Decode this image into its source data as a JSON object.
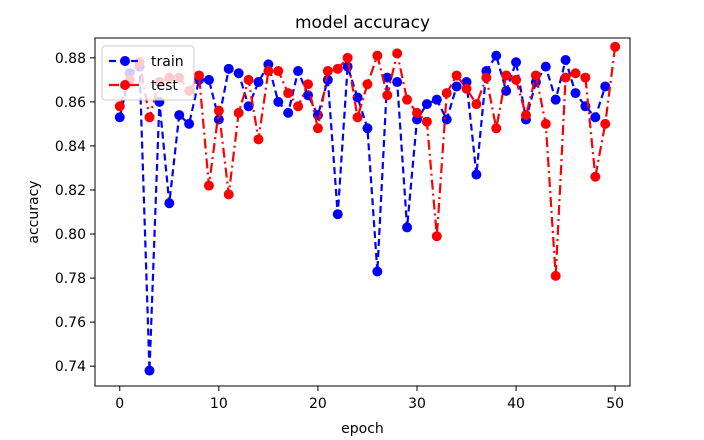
{
  "chart_data": {
    "type": "line",
    "title": "model accuracy",
    "xlabel": "epoch",
    "ylabel": "accuracy",
    "xlim": [
      -2.5,
      51.5
    ],
    "ylim": [
      0.731,
      0.889
    ],
    "xticks": [
      0,
      10,
      20,
      30,
      40,
      50
    ],
    "yticks": [
      0.74,
      0.76,
      0.78,
      0.8,
      0.82,
      0.84,
      0.86,
      0.88
    ],
    "xtick_labels": [
      "0",
      "10",
      "20",
      "30",
      "40",
      "50"
    ],
    "ytick_labels": [
      "0.74",
      "0.76",
      "0.78",
      "0.80",
      "0.82",
      "0.84",
      "0.86",
      "0.88"
    ],
    "grid": false,
    "legend_position": "upper-left",
    "series": [
      {
        "name": "train",
        "color": "#0000ff",
        "linestyle": "dashed",
        "marker": "circle",
        "x": [
          0,
          1,
          2,
          3,
          4,
          5,
          6,
          7,
          8,
          9,
          10,
          11,
          12,
          13,
          14,
          15,
          16,
          17,
          18,
          19,
          20,
          21,
          22,
          23,
          24,
          25,
          26,
          27,
          28,
          29,
          30,
          31,
          32,
          33,
          34,
          35,
          36,
          37,
          38,
          39,
          40,
          41,
          42,
          43,
          44,
          45,
          46,
          47,
          48,
          49
        ],
        "values": [
          0.853,
          0.873,
          0.876,
          0.738,
          0.86,
          0.814,
          0.854,
          0.85,
          0.87,
          0.87,
          0.852,
          0.875,
          0.873,
          0.858,
          0.869,
          0.877,
          0.86,
          0.855,
          0.874,
          0.863,
          0.854,
          0.87,
          0.809,
          0.876,
          0.862,
          0.848,
          0.783,
          0.871,
          0.869,
          0.803,
          0.852,
          0.859,
          0.861,
          0.852,
          0.867,
          0.869,
          0.827,
          0.874,
          0.881,
          0.865,
          0.878,
          0.852,
          0.869,
          0.876,
          0.861,
          0.879,
          0.864,
          0.858,
          0.853,
          0.867
        ]
      },
      {
        "name": "test",
        "color": "#ff0000",
        "linestyle": "dashdot",
        "marker": "circle",
        "x": [
          0,
          1,
          2,
          3,
          4,
          5,
          6,
          7,
          8,
          9,
          10,
          11,
          12,
          13,
          14,
          15,
          16,
          17,
          18,
          19,
          20,
          21,
          22,
          23,
          24,
          25,
          26,
          27,
          28,
          29,
          30,
          31,
          32,
          33,
          34,
          35,
          36,
          37,
          38,
          39,
          40,
          41,
          42,
          43,
          44,
          45,
          46,
          47,
          48,
          49,
          50
        ],
        "values": [
          0.858,
          0.87,
          0.878,
          0.853,
          0.869,
          0.871,
          0.871,
          0.865,
          0.872,
          0.822,
          0.856,
          0.818,
          0.855,
          0.87,
          0.843,
          0.874,
          0.874,
          0.864,
          0.858,
          0.868,
          0.848,
          0.874,
          0.875,
          0.88,
          0.853,
          0.868,
          0.881,
          0.863,
          0.882,
          0.861,
          0.855,
          0.851,
          0.799,
          0.864,
          0.872,
          0.866,
          0.859,
          0.871,
          0.848,
          0.872,
          0.87,
          0.854,
          0.872,
          0.85,
          0.781,
          0.871,
          0.873,
          0.871,
          0.826,
          0.85,
          0.885
        ]
      }
    ]
  }
}
